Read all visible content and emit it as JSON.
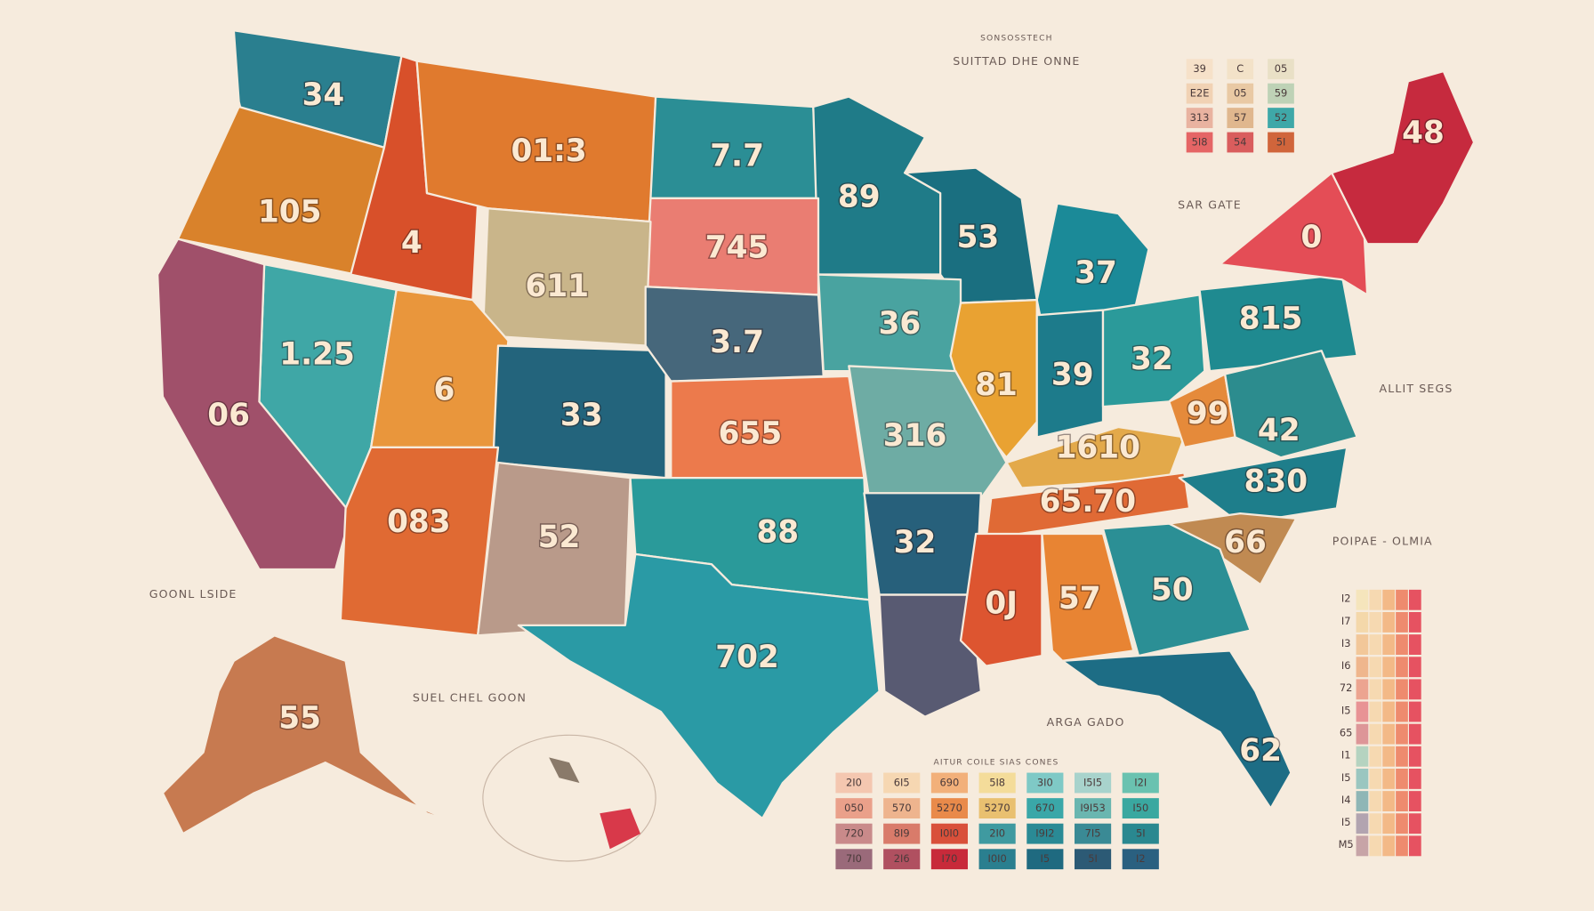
{
  "header": {
    "title": "SUITTAD DHE ONNE",
    "kicker": "SONSOSSTECH"
  },
  "states": [
    "34",
    "105",
    "4",
    "01:3",
    "7.7",
    "89",
    "53",
    "37",
    "745",
    "611",
    "1.25",
    "06",
    "6",
    "33",
    "3.7",
    "36",
    "81",
    "39",
    "32",
    "815",
    "0",
    "48",
    "655",
    "316",
    "1610",
    "65.70",
    "99",
    "42",
    "830",
    "66",
    "083",
    "52",
    "88",
    "702",
    "32",
    "0J",
    "57",
    "50",
    "62",
    "55"
  ],
  "annotations": {
    "east": "SAR GATE",
    "coast": "ALLIT SEGS",
    "west_legend": "GOONL LSIDE",
    "hawaii": "SUEL CHEL GOON",
    "gulf": "ARGA GADO"
  },
  "legend_top": {
    "rows": [
      [
        "39",
        "C",
        "05"
      ],
      [
        "E2E",
        "05",
        "59"
      ],
      [
        "313",
        "57",
        "52"
      ],
      [
        "5I8",
        "54",
        "5I"
      ]
    ]
  },
  "legend_bottom": {
    "title": "AITUR COILE SIAS CONES",
    "rows": [
      [
        "2I0",
        "6I5",
        "690",
        "5I8",
        "3I0",
        "I5I5",
        "I2I"
      ],
      [
        "050",
        "570",
        "5270",
        "5270",
        "670",
        "I9I53",
        "I50"
      ],
      [
        "720",
        "8I9",
        "I0I0",
        "2I0",
        "I9I2",
        "7I5",
        "5I"
      ],
      [
        "7I0",
        "2I6",
        "I70",
        "I0I0",
        "I5",
        "5I",
        "I2"
      ]
    ]
  },
  "color_scale": {
    "title": "POIPAE - OLMIA",
    "labels": [
      "I2",
      "I7",
      "I3",
      "I6",
      "72",
      "I5",
      "65",
      "I1",
      "I5",
      "I4",
      "I5",
      "M5"
    ]
  }
}
